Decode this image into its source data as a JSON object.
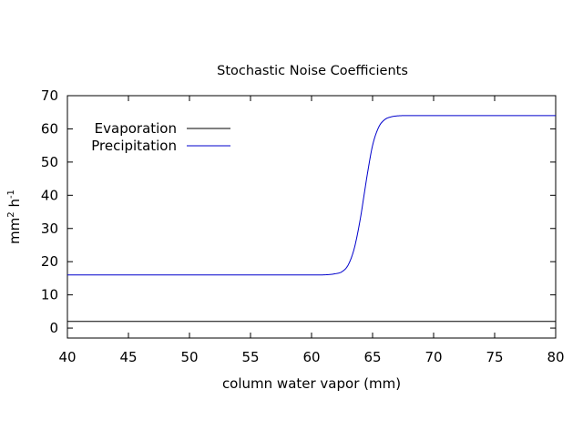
{
  "chart_data": {
    "type": "line",
    "title": "Stochastic Noise Coefficients",
    "xlabel": "column water vapor (mm)",
    "ylabel_main": "mm",
    "ylabel_sup1": "2",
    "ylabel_mid": " h",
    "ylabel_sup2": "-1",
    "xlim": [
      40,
      80
    ],
    "ylim": [
      -3,
      70
    ],
    "xticks": [
      40,
      45,
      50,
      55,
      60,
      65,
      70,
      75,
      80
    ],
    "yticks": [
      0,
      10,
      20,
      30,
      40,
      50,
      60,
      70
    ],
    "grid": false,
    "legend_position": "top-left",
    "series": [
      {
        "name": "Evaporation",
        "color": "#000000",
        "x": [
          40,
          80
        ],
        "y": [
          2,
          2
        ]
      },
      {
        "name": "Precipitation",
        "color": "#0000cc",
        "x": [
          40,
          50,
          60,
          62,
          62.5,
          63,
          63.5,
          64,
          64.3,
          64.6,
          65,
          65.5,
          66,
          66.5,
          67,
          68,
          70,
          75,
          80
        ],
        "y": [
          16,
          16,
          16,
          16.4,
          17,
          19,
          24,
          33,
          40,
          47,
          55,
          60.5,
          62.8,
          63.6,
          63.9,
          64,
          64,
          64,
          64
        ]
      }
    ]
  }
}
